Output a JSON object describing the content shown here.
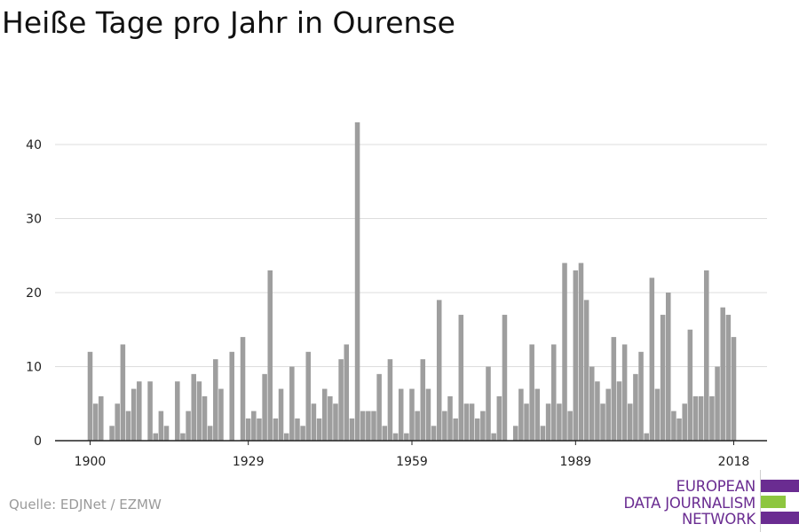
{
  "title": "Heiße Tage pro Jahr in Ourense",
  "source": "Quelle: EDJNet / EZMW",
  "logo": {
    "lines": [
      "EUROPEAN",
      "DATA JOURNALISM",
      "NETWORK"
    ],
    "text_color": "#6a2c91",
    "bar_colors": [
      "#6a2c91",
      "#8dc63f",
      "#6a2c91"
    ]
  },
  "colors": {
    "bar": "#9e9e9e",
    "grid": "#dddddd",
    "axis": "#222222"
  },
  "chart_data": {
    "type": "bar",
    "title": "Heiße Tage pro Jahr in Ourense",
    "xlabel": "",
    "ylabel": "",
    "ylim": [
      0,
      45
    ],
    "grid": true,
    "yticks": [
      0,
      10,
      20,
      30,
      40
    ],
    "xticks": [
      1900,
      1929,
      1959,
      1989,
      2018
    ],
    "x": [
      1900,
      1901,
      1902,
      1903,
      1904,
      1905,
      1906,
      1907,
      1908,
      1909,
      1910,
      1911,
      1912,
      1913,
      1914,
      1915,
      1916,
      1917,
      1918,
      1919,
      1920,
      1921,
      1922,
      1923,
      1924,
      1925,
      1926,
      1927,
      1928,
      1929,
      1930,
      1931,
      1932,
      1933,
      1934,
      1935,
      1936,
      1937,
      1938,
      1939,
      1940,
      1941,
      1942,
      1943,
      1944,
      1945,
      1946,
      1947,
      1948,
      1949,
      1950,
      1951,
      1952,
      1953,
      1954,
      1955,
      1956,
      1957,
      1958,
      1959,
      1960,
      1961,
      1962,
      1963,
      1964,
      1965,
      1966,
      1967,
      1968,
      1969,
      1970,
      1971,
      1972,
      1973,
      1974,
      1975,
      1976,
      1977,
      1978,
      1979,
      1980,
      1981,
      1982,
      1983,
      1984,
      1985,
      1986,
      1987,
      1988,
      1989,
      1990,
      1991,
      1992,
      1993,
      1994,
      1995,
      1996,
      1997,
      1998,
      1999,
      2000,
      2001,
      2002,
      2003,
      2004,
      2005,
      2006,
      2007,
      2008,
      2009,
      2010,
      2011,
      2012,
      2013,
      2014,
      2015,
      2016,
      2017,
      2018
    ],
    "values": [
      12,
      5,
      6,
      0,
      2,
      5,
      13,
      4,
      7,
      8,
      0,
      8,
      1,
      4,
      2,
      0,
      8,
      1,
      4,
      9,
      8,
      6,
      2,
      11,
      7,
      0,
      12,
      0,
      14,
      3,
      4,
      3,
      9,
      23,
      3,
      7,
      1,
      10,
      3,
      2,
      12,
      5,
      3,
      7,
      6,
      5,
      11,
      13,
      3,
      43,
      4,
      4,
      4,
      9,
      2,
      11,
      1,
      7,
      1,
      7,
      4,
      11,
      7,
      2,
      19,
      4,
      6,
      3,
      17,
      5,
      5,
      3,
      4,
      10,
      1,
      6,
      17,
      0,
      2,
      7,
      5,
      13,
      7,
      2,
      5,
      13,
      5,
      24,
      4,
      23,
      24,
      19,
      10,
      8,
      5,
      7,
      14,
      8,
      13,
      5,
      9,
      12,
      1,
      22,
      7,
      17,
      20,
      4,
      3,
      5,
      15,
      6,
      6,
      23,
      6,
      10,
      18,
      17,
      14
    ]
  }
}
